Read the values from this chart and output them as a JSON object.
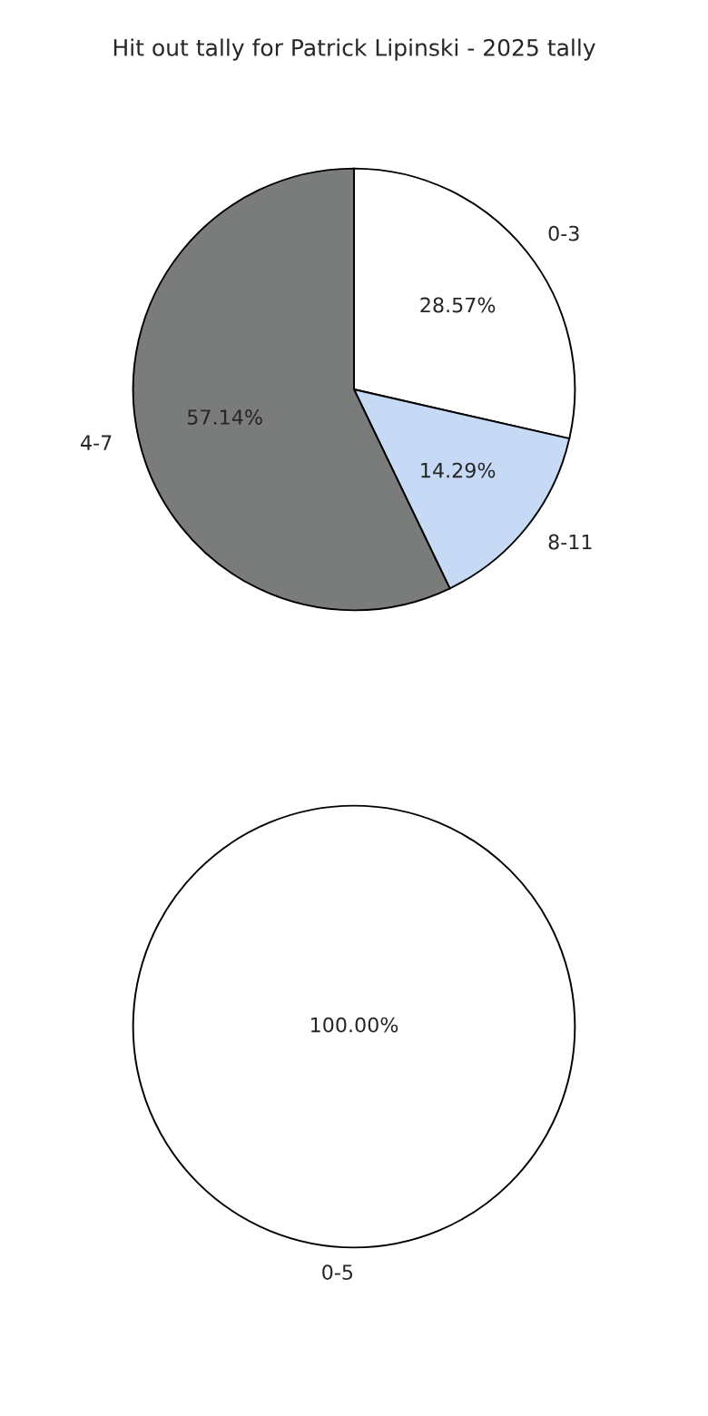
{
  "chart_data": [
    {
      "type": "pie",
      "title": "Hit out tally for Patrick Lipinski - 2025 tally",
      "categories": [
        "0-3",
        "8-11",
        "4-7"
      ],
      "values": [
        28.57,
        14.29,
        57.14
      ],
      "value_labels": [
        "28.57%",
        "14.29%",
        "57.14%"
      ],
      "colors": [
        "#ffffff",
        "#c6d9f5",
        "#7a7b7b"
      ]
    },
    {
      "type": "pie",
      "categories": [
        "0-5"
      ],
      "values": [
        100
      ],
      "value_labels": [
        "100.00%"
      ],
      "colors": [
        "#ffffff"
      ]
    }
  ]
}
